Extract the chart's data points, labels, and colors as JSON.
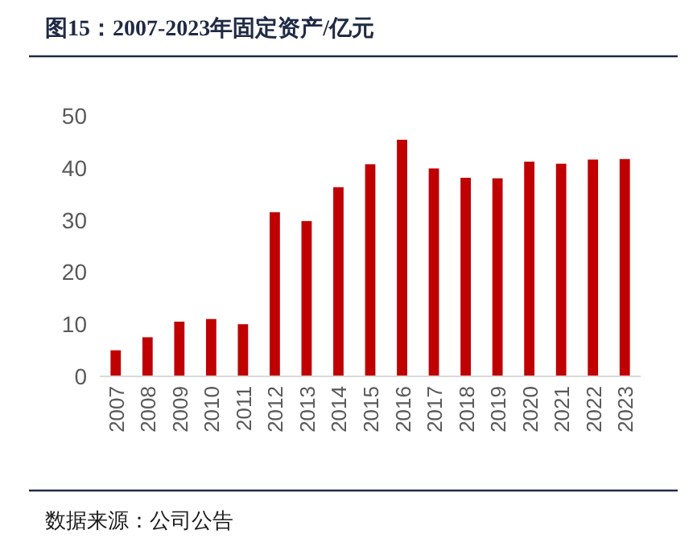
{
  "chart_data": {
    "type": "bar",
    "title": "图15：2007-2023年固定资产/亿元",
    "categories": [
      "2007",
      "2008",
      "2009",
      "2010",
      "2011",
      "2012",
      "2013",
      "2014",
      "2015",
      "2016",
      "2017",
      "2018",
      "2019",
      "2020",
      "2021",
      "2022",
      "2023"
    ],
    "values": [
      5.0,
      7.5,
      10.5,
      11.0,
      10.0,
      31.5,
      29.8,
      36.3,
      40.7,
      45.4,
      39.9,
      38.1,
      38.0,
      41.2,
      40.8,
      41.6,
      41.7
    ],
    "color": "#c00000",
    "ylim": [
      0,
      50
    ],
    "yticks": [
      0,
      10,
      20,
      30,
      40,
      50
    ],
    "annotations": [
      "数据来源：公司公告"
    ]
  }
}
